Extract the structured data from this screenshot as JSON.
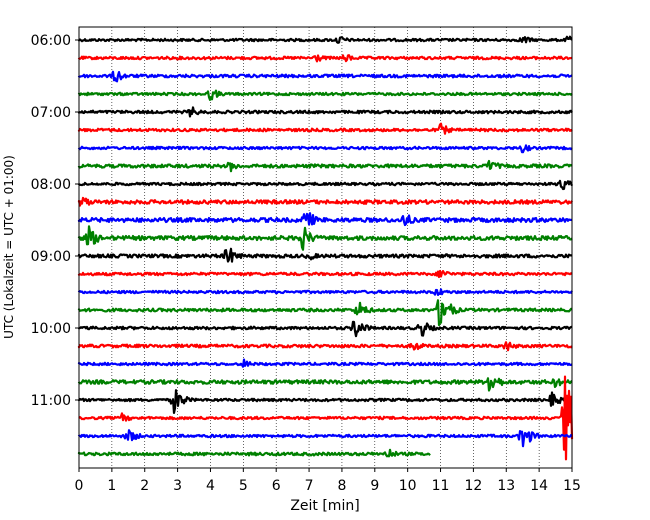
{
  "chart_data": {
    "type": "line",
    "title": "",
    "xlabel": "Zeit  [min]",
    "ylabel": "UTC (Lokalzeit = UTC + 01:00)",
    "xlim": [
      0,
      15
    ],
    "x_ticks": [
      "0",
      "1",
      "2",
      "3",
      "4",
      "5",
      "6",
      "7",
      "8",
      "9",
      "10",
      "11",
      "12",
      "13",
      "14",
      "15"
    ],
    "y_ticks": [
      {
        "label": "06:00",
        "row": 0
      },
      {
        "label": "07:00",
        "row": 4
      },
      {
        "label": "08:00",
        "row": 8
      },
      {
        "label": "09:00",
        "row": 12
      },
      {
        "label": "10:00",
        "row": 16
      },
      {
        "label": "11:00",
        "row": 20
      }
    ],
    "grid": "vertical dotted at each minute",
    "row_minutes": 15,
    "series_colors": [
      "#000000",
      "#ff0000",
      "#0000ff",
      "#008000"
    ],
    "rows": [
      {
        "start": "06:00",
        "color": "#000000",
        "amplitude": 1.2,
        "end_min": 15,
        "events": [
          {
            "t": 7.9,
            "a": 5
          },
          {
            "t": 13.5,
            "a": 5
          },
          {
            "t": 14.9,
            "a": 5
          }
        ]
      },
      {
        "start": "06:15",
        "color": "#ff0000",
        "amplitude": 1.3,
        "end_min": 15,
        "events": [
          {
            "t": 7.2,
            "a": 5
          },
          {
            "t": 8.1,
            "a": 5
          }
        ]
      },
      {
        "start": "06:30",
        "color": "#0000ff",
        "amplitude": 1.4,
        "end_min": 15,
        "events": [
          {
            "t": 1.1,
            "a": 8
          }
        ]
      },
      {
        "start": "06:45",
        "color": "#008000",
        "amplitude": 1.2,
        "end_min": 15,
        "events": [
          {
            "t": 4.0,
            "a": 7
          }
        ]
      },
      {
        "start": "07:00",
        "color": "#000000",
        "amplitude": 1.3,
        "end_min": 15,
        "events": [
          {
            "t": 3.4,
            "a": 6
          }
        ]
      },
      {
        "start": "07:15",
        "color": "#ff0000",
        "amplitude": 1.3,
        "end_min": 15,
        "events": [
          {
            "t": 11.0,
            "a": 7
          }
        ]
      },
      {
        "start": "07:30",
        "color": "#0000ff",
        "amplitude": 1.2,
        "end_min": 15,
        "events": [
          {
            "t": 13.5,
            "a": 5
          }
        ]
      },
      {
        "start": "07:45",
        "color": "#008000",
        "amplitude": 1.6,
        "end_min": 15,
        "events": [
          {
            "t": 4.6,
            "a": 6
          },
          {
            "t": 12.5,
            "a": 7
          }
        ]
      },
      {
        "start": "08:00",
        "color": "#000000",
        "amplitude": 1.2,
        "end_min": 15,
        "events": [
          {
            "t": 14.7,
            "a": 7
          }
        ]
      },
      {
        "start": "08:15",
        "color": "#ff0000",
        "amplitude": 1.8,
        "end_min": 15,
        "events": [
          {
            "t": 0.1,
            "a": 7
          }
        ]
      },
      {
        "start": "08:30",
        "color": "#0000ff",
        "amplitude": 2.0,
        "end_min": 15,
        "events": [
          {
            "t": 6.9,
            "a": 12
          },
          {
            "t": 9.9,
            "a": 8
          }
        ]
      },
      {
        "start": "08:45",
        "color": "#008000",
        "amplitude": 2.0,
        "end_min": 15,
        "events": [
          {
            "t": 0.3,
            "a": 12
          },
          {
            "t": 6.8,
            "a": 14
          }
        ]
      },
      {
        "start": "09:00",
        "color": "#000000",
        "amplitude": 1.6,
        "end_min": 15,
        "events": [
          {
            "t": 4.5,
            "a": 12
          },
          {
            "t": 7.0,
            "a": 5
          }
        ]
      },
      {
        "start": "09:15",
        "color": "#ff0000",
        "amplitude": 1.3,
        "end_min": 15,
        "events": [
          {
            "t": 11.0,
            "a": 6
          }
        ]
      },
      {
        "start": "09:30",
        "color": "#0000ff",
        "amplitude": 1.2,
        "end_min": 15,
        "events": [
          {
            "t": 10.9,
            "a": 5
          }
        ]
      },
      {
        "start": "09:45",
        "color": "#008000",
        "amplitude": 1.4,
        "end_min": 15,
        "events": [
          {
            "t": 8.5,
            "a": 10
          },
          {
            "t": 11.0,
            "a": 22
          }
        ]
      },
      {
        "start": "10:00",
        "color": "#000000",
        "amplitude": 1.3,
        "end_min": 15,
        "events": [
          {
            "t": 8.4,
            "a": 12
          },
          {
            "t": 10.4,
            "a": 10
          }
        ]
      },
      {
        "start": "10:15",
        "color": "#ff0000",
        "amplitude": 1.4,
        "end_min": 15,
        "events": [
          {
            "t": 10.2,
            "a": 6
          },
          {
            "t": 13.0,
            "a": 6
          }
        ]
      },
      {
        "start": "10:30",
        "color": "#0000ff",
        "amplitude": 1.2,
        "end_min": 15,
        "events": [
          {
            "t": 5.0,
            "a": 5
          }
        ]
      },
      {
        "start": "10:45",
        "color": "#008000",
        "amplitude": 1.8,
        "end_min": 15,
        "events": [
          {
            "t": 12.5,
            "a": 14
          },
          {
            "t": 14.5,
            "a": 6
          }
        ]
      },
      {
        "start": "11:00",
        "color": "#000000",
        "amplitude": 1.2,
        "end_min": 15,
        "events": [
          {
            "t": 2.9,
            "a": 14
          },
          {
            "t": 14.4,
            "a": 8
          }
        ]
      },
      {
        "start": "11:15",
        "color": "#ff0000",
        "amplitude": 1.2,
        "end_min": 15,
        "events": [
          {
            "t": 1.3,
            "a": 5
          },
          {
            "t": 14.8,
            "a": 50
          }
        ]
      },
      {
        "start": "11:30",
        "color": "#0000ff",
        "amplitude": 1.2,
        "end_min": 15,
        "events": [
          {
            "t": 1.5,
            "a": 8
          },
          {
            "t": 13.5,
            "a": 14
          }
        ]
      },
      {
        "start": "11:45",
        "color": "#008000",
        "amplitude": 1.4,
        "end_min": 10.7,
        "events": [
          {
            "t": 9.4,
            "a": 6
          }
        ]
      }
    ]
  }
}
